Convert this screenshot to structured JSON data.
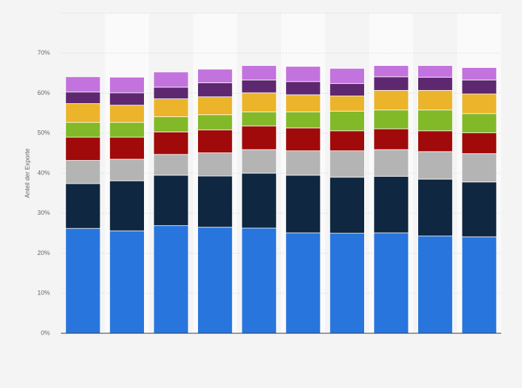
{
  "chart_data": {
    "type": "stacked_bar",
    "y_label": "Anteil der Exporte",
    "categories": [
      null,
      null,
      null,
      null,
      null,
      null,
      null,
      null,
      null,
      null
    ],
    "series": [
      {
        "color": "#2876dd",
        "values": [
          26.2,
          25.6,
          26.9,
          26.5,
          26.3,
          25.1,
          25.0,
          25.1,
          24.3,
          24.1
        ]
      },
      {
        "color": "#0f2740",
        "values": [
          11.2,
          12.5,
          12.6,
          12.8,
          13.7,
          14.4,
          14.0,
          14.1,
          14.2,
          13.7
        ]
      },
      {
        "color": "#b4b4b4",
        "values": [
          5.8,
          5.4,
          5.2,
          5.8,
          5.9,
          6.1,
          6.6,
          6.7,
          6.9,
          7.1
        ]
      },
      {
        "color": "#a10a0a",
        "values": [
          5.8,
          5.5,
          5.6,
          5.7,
          5.9,
          5.7,
          5.0,
          5.2,
          5.2,
          5.2
        ]
      },
      {
        "color": "#82b928",
        "values": [
          3.7,
          3.7,
          3.8,
          3.8,
          3.5,
          4.0,
          4.9,
          4.7,
          5.2,
          4.8
        ]
      },
      {
        "color": "#ebb42a",
        "values": [
          4.7,
          4.3,
          4.5,
          4.5,
          4.8,
          4.3,
          3.8,
          4.9,
          4.9,
          4.9
        ]
      },
      {
        "color": "#5e2870",
        "values": [
          2.9,
          3.1,
          2.9,
          3.5,
          3.2,
          3.3,
          3.1,
          3.4,
          3.3,
          3.5
        ]
      },
      {
        "color": "#c373dd",
        "values": [
          3.8,
          3.9,
          3.8,
          3.4,
          3.6,
          3.8,
          3.8,
          2.8,
          2.9,
          3.1
        ]
      }
    ],
    "ylim": [
      0,
      80
    ],
    "yticks": [
      {
        "value": 0,
        "label": "0%"
      },
      {
        "value": 10,
        "label": "10%"
      },
      {
        "value": 20,
        "label": "20%"
      },
      {
        "value": 30,
        "label": "30%"
      },
      {
        "value": 40,
        "label": "40%"
      },
      {
        "value": 50,
        "label": "50%"
      },
      {
        "value": 60,
        "label": "60%"
      },
      {
        "value": 70,
        "label": "70%"
      }
    ],
    "grid": true
  }
}
